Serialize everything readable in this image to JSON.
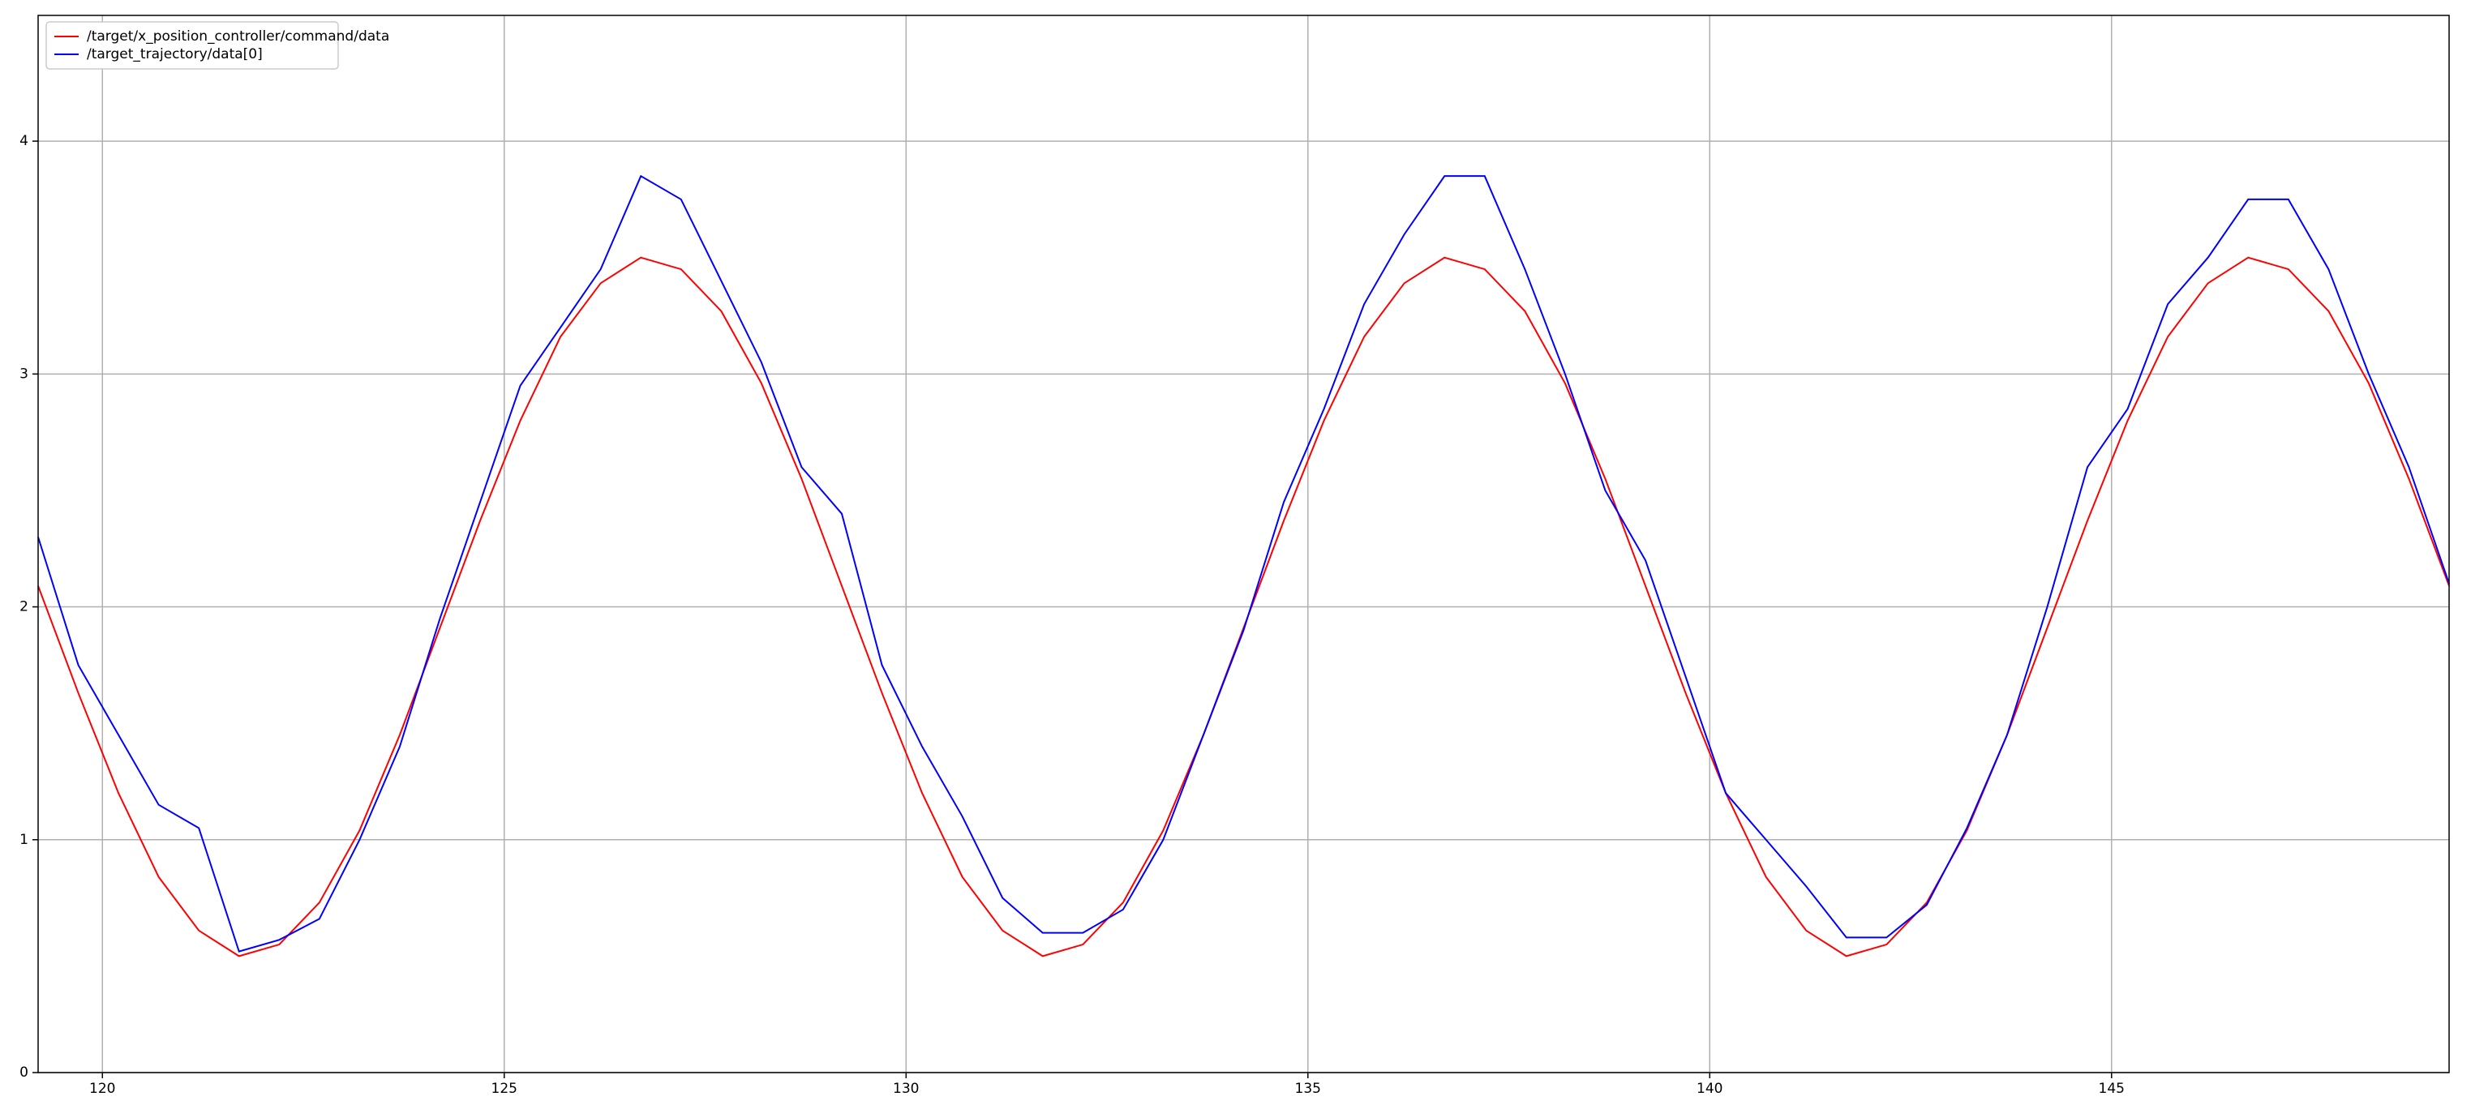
{
  "chart_data": {
    "type": "line",
    "x": [
      119.2,
      119.7,
      120.2,
      120.7,
      121.2,
      121.7,
      122.2,
      122.7,
      123.2,
      123.7,
      124.2,
      124.7,
      125.2,
      125.7,
      126.2,
      126.7,
      127.2,
      127.7,
      128.2,
      128.7,
      129.2,
      129.7,
      130.2,
      130.7,
      131.2,
      131.7,
      132.2,
      132.7,
      133.2,
      133.7,
      134.2,
      134.7,
      135.2,
      135.7,
      136.2,
      136.7,
      137.2,
      137.7,
      138.2,
      138.7,
      139.2,
      139.7,
      140.2,
      140.7,
      141.2,
      141.7,
      142.2,
      142.7,
      143.2,
      143.7,
      144.2,
      144.7,
      145.2,
      145.7,
      146.2,
      146.7,
      147.2,
      147.7,
      148.2,
      148.7,
      149.2
    ],
    "series": [
      {
        "name": "/target/x_position_controller/command/data",
        "color": "#ff0000",
        "values": [
          2.09,
          1.63,
          1.2,
          0.84,
          0.61,
          0.5,
          0.55,
          0.73,
          1.04,
          1.45,
          1.91,
          2.37,
          2.8,
          3.16,
          3.39,
          3.5,
          3.45,
          3.27,
          2.96,
          2.55,
          2.09,
          1.63,
          1.2,
          0.84,
          0.61,
          0.5,
          0.55,
          0.73,
          1.04,
          1.45,
          1.91,
          2.37,
          2.8,
          3.16,
          3.39,
          3.5,
          3.45,
          3.27,
          2.96,
          2.55,
          2.09,
          1.63,
          1.2,
          0.84,
          0.61,
          0.5,
          0.55,
          0.73,
          1.04,
          1.45,
          1.91,
          2.37,
          2.8,
          3.16,
          3.39,
          3.5,
          3.45,
          3.27,
          2.96,
          2.55,
          2.09
        ]
      },
      {
        "name": "/target_trajectory/data[0]",
        "color": "#0000ff",
        "values": [
          2.3,
          1.75,
          1.45,
          1.15,
          1.05,
          0.52,
          0.57,
          0.66,
          1.0,
          1.4,
          1.95,
          2.45,
          2.95,
          3.2,
          3.45,
          3.85,
          3.75,
          3.4,
          3.05,
          2.6,
          2.4,
          1.75,
          1.4,
          1.1,
          0.75,
          0.6,
          0.6,
          0.7,
          1.0,
          1.45,
          1.9,
          2.45,
          2.85,
          3.3,
          3.6,
          3.85,
          3.85,
          3.45,
          3.0,
          2.5,
          2.2,
          1.7,
          1.2,
          1.0,
          0.8,
          0.58,
          0.58,
          0.72,
          1.05,
          1.45,
          2.0,
          2.6,
          2.85,
          3.3,
          3.5,
          3.75,
          3.75,
          3.45,
          3.0,
          2.6,
          2.1
        ]
      }
    ],
    "xlim": [
      119.2,
      149.2
    ],
    "xticks": [
      120,
      125,
      130,
      135,
      140,
      145
    ],
    "ylim": [
      0,
      4.54
    ],
    "yticks": [
      0,
      1,
      2,
      3,
      4
    ],
    "grid": true,
    "legend": "upper-left"
  }
}
